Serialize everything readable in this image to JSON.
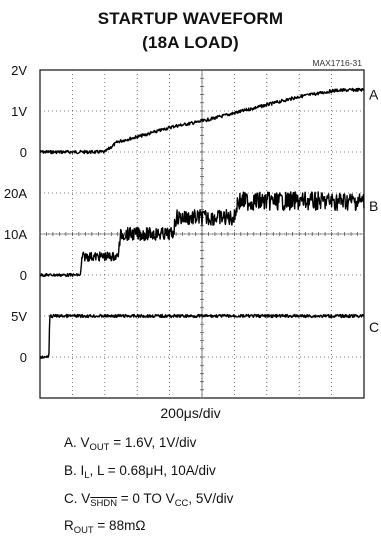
{
  "chart_data": {
    "type": "line",
    "title": "STARTUP WAVEFORM",
    "subtitle": "(18A LOAD)",
    "part_number": "MAX1716-31",
    "x_axis": {
      "label": "200μs/div",
      "divisions": 10,
      "range_us": [
        0,
        2000
      ]
    },
    "grid": true,
    "traces": [
      {
        "name": "A",
        "y_ticks": [
          "2V",
          "1V",
          "0"
        ],
        "ylim": [
          0,
          2
        ],
        "units": "V",
        "points": [
          [
            0,
            0
          ],
          [
            400,
            0
          ],
          [
            480,
            0.25
          ],
          [
            650,
            0.42
          ],
          [
            820,
            0.62
          ],
          [
            1000,
            0.75
          ],
          [
            1200,
            0.95
          ],
          [
            1400,
            1.15
          ],
          [
            1600,
            1.35
          ],
          [
            1820,
            1.5
          ],
          [
            2000,
            1.52
          ]
        ]
      },
      {
        "name": "B",
        "y_ticks": [
          "20A",
          "10A",
          "0"
        ],
        "ylim": [
          0,
          20
        ],
        "units": "A",
        "points": [
          [
            0,
            0
          ],
          [
            250,
            0
          ],
          [
            260,
            4.5
          ],
          [
            480,
            4.5
          ],
          [
            500,
            10
          ],
          [
            820,
            10
          ],
          [
            840,
            14
          ],
          [
            1200,
            14
          ],
          [
            1220,
            18
          ],
          [
            2000,
            18
          ]
        ]
      },
      {
        "name": "C",
        "y_ticks": [
          "5V",
          "0"
        ],
        "ylim": [
          0,
          5
        ],
        "units": "V",
        "points": [
          [
            0,
            0
          ],
          [
            55,
            0
          ],
          [
            60,
            5
          ],
          [
            2000,
            5
          ]
        ]
      }
    ]
  },
  "captions": {
    "a_prefix": "A. V",
    "a_sub": "OUT",
    "a_rest": " = 1.6V, 1V/div",
    "b_prefix": "B. I",
    "b_sub": "L",
    "b_rest": ", L = 0.68μH, 10A/div",
    "c_prefix": "C. V",
    "c_over": "SHDN",
    "c_mid": " = 0 TO V",
    "c_sub": "CC",
    "c_rest": ", 5V/div",
    "r_prefix": "R",
    "r_sub": "OUT",
    "r_rest": " = 88mΩ"
  }
}
